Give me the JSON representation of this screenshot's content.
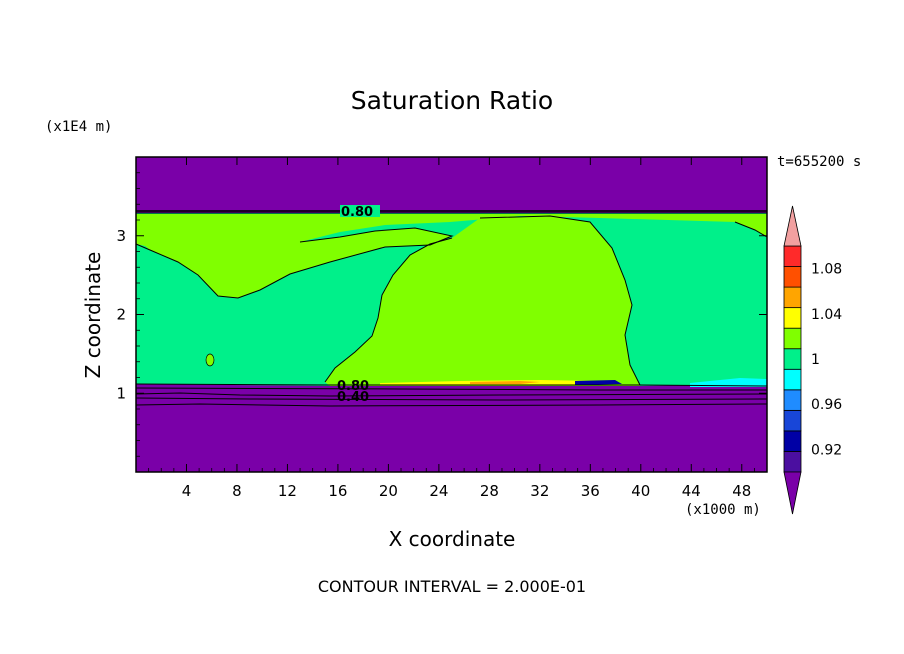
{
  "chart_data": {
    "type": "contour",
    "title": "Saturation Ratio",
    "xlabel": "X coordinate",
    "ylabel": "Z coordinate",
    "x_unit": "(x1000 m)",
    "y_unit": "(x1E4 m)",
    "time_label": "t=655200 s",
    "footer": "CONTOUR INTERVAL = 2.000E-01",
    "xlim": [
      0,
      50
    ],
    "ylim": [
      0,
      4
    ],
    "x_ticks": [
      "4",
      "8",
      "12",
      "16",
      "20",
      "24",
      "28",
      "32",
      "36",
      "40",
      "44",
      "48"
    ],
    "y_ticks": [
      "1",
      "2",
      "3"
    ],
    "contour_labels": [
      "0.80",
      "0.80",
      "0.40"
    ],
    "colorbar": {
      "levels": [
        0.9,
        0.92,
        0.94,
        0.96,
        0.98,
        1.0,
        1.02,
        1.04,
        1.06,
        1.08,
        1.1
      ],
      "tick_labels": [
        "0.92",
        "0.96",
        "1",
        "1.04",
        "1.08"
      ],
      "colors": [
        "#4b0fa0",
        "#0000a5",
        "#1846d8",
        "#1f8cff",
        "#00ffff",
        "#00f08a",
        "#80ff00",
        "#ffff00",
        "#ffa500",
        "#ff5000",
        "#ff2a2a"
      ],
      "under_color": "#7a00a8",
      "over_color": "#f2a0a0"
    },
    "regions": [
      {
        "value": "below 0.90",
        "color": "#7a00a8",
        "area": "z 0–1.1 and z 3.3–4"
      },
      {
        "value": "0.98–1.00",
        "color": "#00f08a",
        "area": "main cloud layer z 1.1–3.3"
      },
      {
        "value": "1.00–1.02",
        "color": "#80ff00",
        "area": "supersaturated lobes x 15–39"
      }
    ]
  }
}
